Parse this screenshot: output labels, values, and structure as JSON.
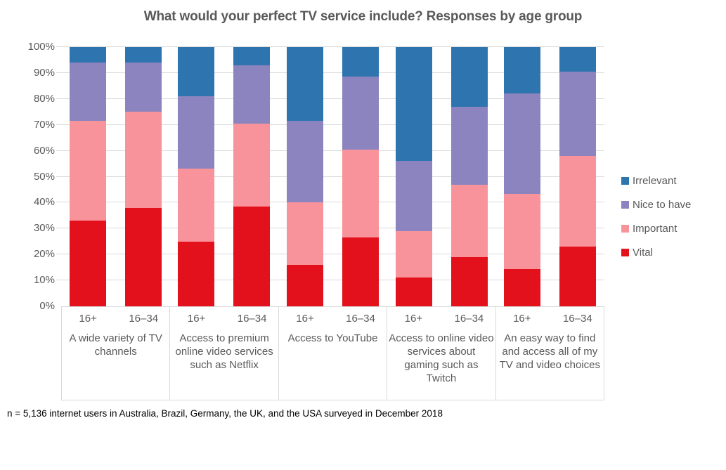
{
  "footnote": "n = 5,136 internet users in Australia, Brazil, Germany, the UK, and the USA surveyed in December 2018",
  "chart_data": {
    "type": "bar",
    "stacked": true,
    "title": "What would your perfect TV service include? Responses by age group",
    "xlabel": "",
    "ylabel": "",
    "ylim": [
      0,
      100
    ],
    "y_ticks": [
      "0%",
      "10%",
      "20%",
      "30%",
      "40%",
      "50%",
      "60%",
      "70%",
      "80%",
      "90%",
      "100%"
    ],
    "grid": true,
    "legend_position": "right",
    "legend": [
      {
        "label": "Irrelevant",
        "color": "#2E75B0"
      },
      {
        "label": "Nice to have",
        "color": "#8C84BE"
      },
      {
        "label": "Important",
        "color": "#F9939B"
      },
      {
        "label": "Vital",
        "color": "#E2111C"
      }
    ],
    "series_order_bottom_to_top": [
      "Vital",
      "Important",
      "Nice to have",
      "Irrelevant"
    ],
    "groups": [
      {
        "category": "A wide variety of TV channels",
        "bars": [
          {
            "age": "16+",
            "Vital": 33,
            "Important": 38.5,
            "Nice to have": 22.5,
            "Irrelevant": 6
          },
          {
            "age": "16–34",
            "Vital": 38,
            "Important": 37,
            "Nice to have": 19,
            "Irrelevant": 6
          }
        ]
      },
      {
        "category": "Access to premium online video services such as Netflix",
        "bars": [
          {
            "age": "16+",
            "Vital": 25,
            "Important": 28,
            "Nice to have": 28,
            "Irrelevant": 19
          },
          {
            "age": "16–34",
            "Vital": 38.5,
            "Important": 32,
            "Nice to have": 22.5,
            "Irrelevant": 7
          }
        ]
      },
      {
        "category": "Access to YouTube",
        "bars": [
          {
            "age": "16+",
            "Vital": 16,
            "Important": 24,
            "Nice to have": 31.5,
            "Irrelevant": 28.5
          },
          {
            "age": "16–34",
            "Vital": 26.5,
            "Important": 34,
            "Nice to have": 28,
            "Irrelevant": 11.5
          }
        ]
      },
      {
        "category": "Access to online video services about gaming such as Twitch",
        "bars": [
          {
            "age": "16+",
            "Vital": 11,
            "Important": 18,
            "Nice to have": 27,
            "Irrelevant": 44
          },
          {
            "age": "16–34",
            "Vital": 19,
            "Important": 28,
            "Nice to have": 30,
            "Irrelevant": 23
          }
        ]
      },
      {
        "category": "An easy way to find and access all of my TV and video choices",
        "bars": [
          {
            "age": "16+",
            "Vital": 14.5,
            "Important": 29,
            "Nice to have": 38.5,
            "Irrelevant": 18
          },
          {
            "age": "16–34",
            "Vital": 23,
            "Important": 35,
            "Nice to have": 32.5,
            "Irrelevant": 9.5
          }
        ]
      }
    ],
    "style": {
      "grid_color": "#D9D9D9",
      "axis_text_color": "#595959",
      "title_color": "#595959",
      "footnote_color": "#000000"
    }
  }
}
